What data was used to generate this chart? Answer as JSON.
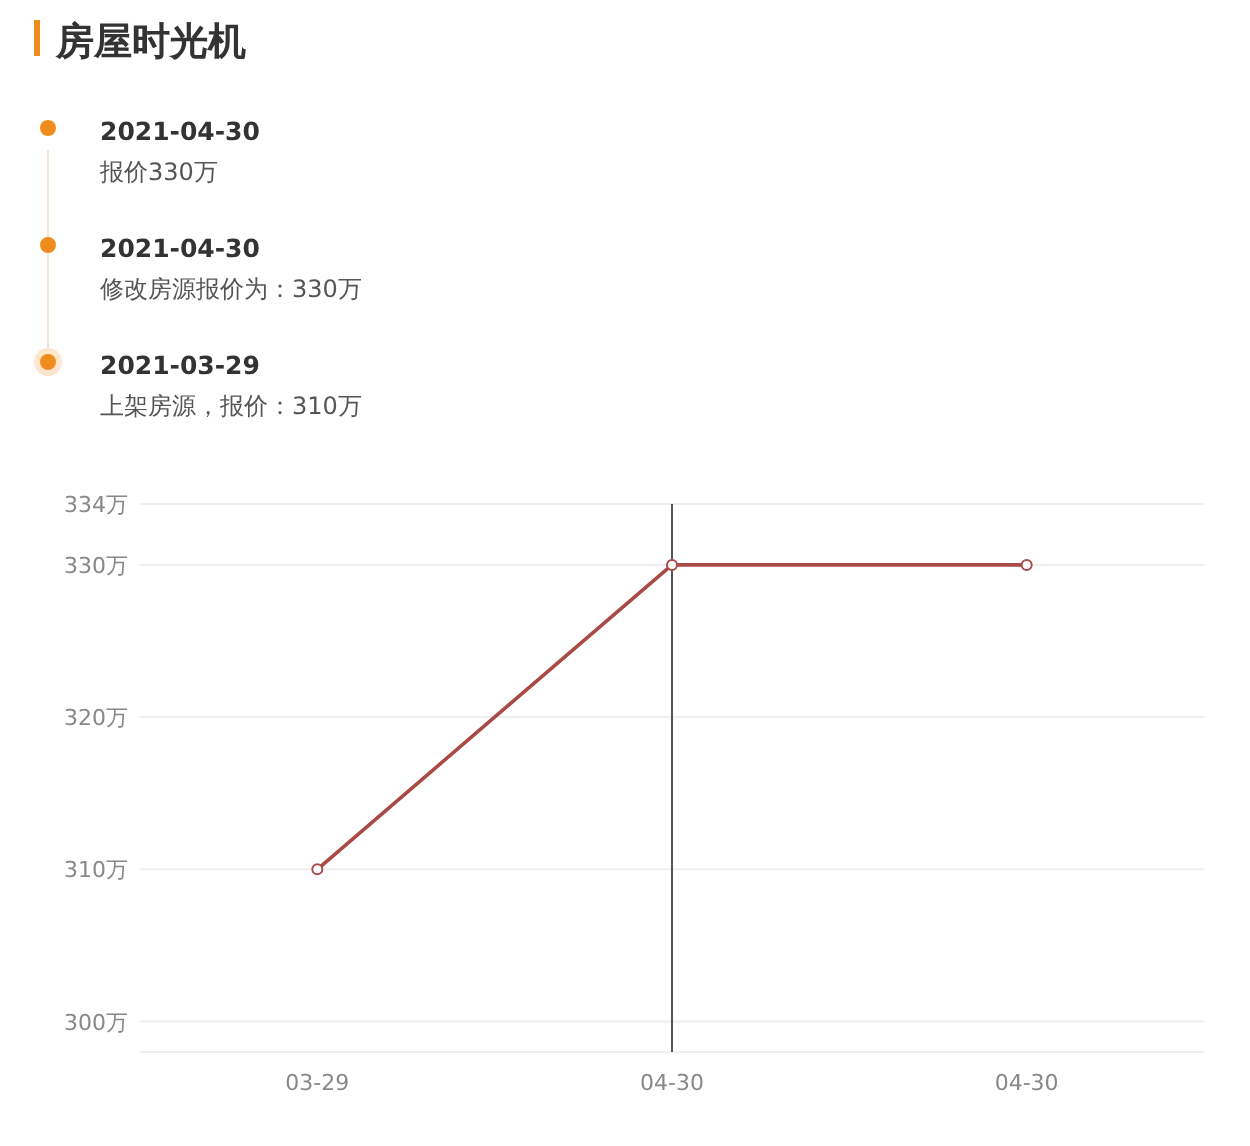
{
  "chart_data": {
    "type": "line",
    "title": "房屋时光机",
    "annotations": [
      "2021-04-30",
      "报价330万",
      "2021-04-30",
      "修改房源报价为：330万",
      "2021-03-29",
      "上架房源，报价：310万"
    ],
    "categories": [
      "03-29",
      "04-30",
      "04-30"
    ],
    "series": [
      {
        "color": "#a84a46",
        "values": [
          310,
          330,
          330
        ]
      }
    ],
    "ylim": [
      298,
      334
    ],
    "yticks": [
      {
        "value": 300,
        "label": "300万"
      },
      {
        "value": 310,
        "label": "310万"
      },
      {
        "value": 320,
        "label": "320万"
      },
      {
        "value": 330,
        "label": "330万"
      },
      {
        "value": 334,
        "label": "334万"
      }
    ],
    "ref_lines": [
      {
        "axis": "x",
        "value": "04-30",
        "color": "#555555"
      }
    ],
    "grid": "y",
    "marker": "circle",
    "line_style": "solid"
  }
}
